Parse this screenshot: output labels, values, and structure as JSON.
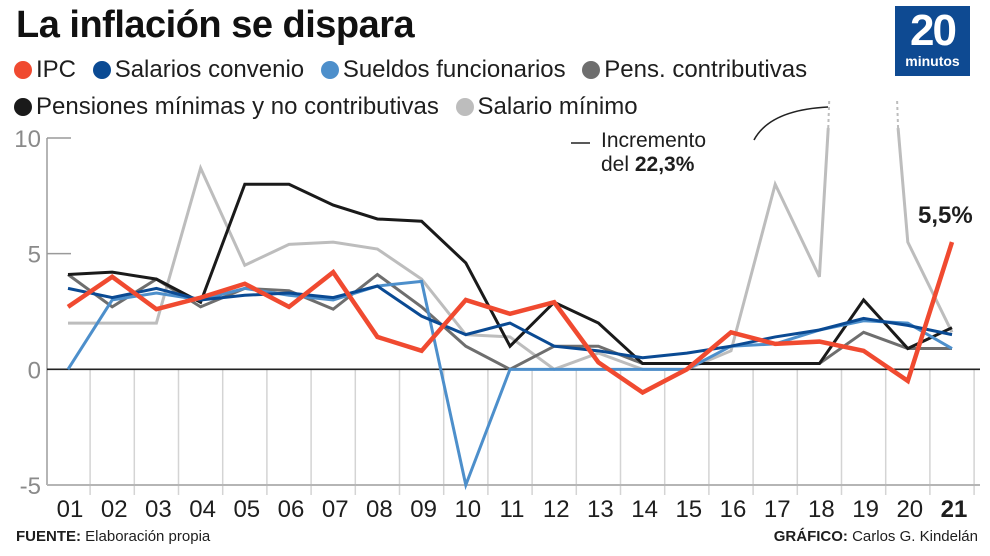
{
  "header": {
    "title": "La inflación se dispara",
    "logo": {
      "number": "20",
      "word": "minutos",
      "color": "#0e4a92"
    }
  },
  "legend": [
    {
      "label": "IPC",
      "color": "#f04a30"
    },
    {
      "label": "Salarios convenio",
      "color": "#0a4a93"
    },
    {
      "label": "Sueldos funcionarios",
      "color": "#4d8fcb"
    },
    {
      "label": "Pens. contributivas",
      "color": "#6e6e6e"
    },
    {
      "label": "Pensiones mínimas y no contributivas",
      "color": "#1a1a1a"
    },
    {
      "label": "Salario mínimo",
      "color": "#bdbdbd"
    }
  ],
  "annotation": {
    "line1": "Incremento",
    "line2_prefix": "del ",
    "line2_value": "22,3%"
  },
  "end_label": "5,5%",
  "footer": {
    "source_label": "FUENTE:",
    "source_text": " Elaboración propia",
    "credit_label": "GRÁFICO:",
    "credit_text": " Carlos G. Kindelán"
  },
  "chart_data": {
    "type": "line",
    "title": "La inflación se dispara",
    "xlabel": "",
    "ylabel": "",
    "x": [
      "01",
      "02",
      "03",
      "04",
      "05",
      "06",
      "07",
      "08",
      "09",
      "10",
      "11",
      "12",
      "13",
      "14",
      "15",
      "16",
      "17",
      "18",
      "19",
      "20",
      "21"
    ],
    "highlight_x": "21",
    "ylim": [
      -5,
      10
    ],
    "yticks": [
      -5,
      0,
      5,
      10
    ],
    "grid": "vertical",
    "legend_position": "top",
    "series": [
      {
        "name": "Salario mínimo",
        "color": "#bdbdbd",
        "values": [
          2.0,
          2.0,
          2.0,
          8.7,
          4.5,
          5.4,
          5.5,
          5.2,
          3.9,
          1.5,
          1.4,
          0.0,
          0.7,
          0.0,
          0.0,
          0.8,
          8.0,
          4.0,
          22.3,
          5.5,
          1.6
        ],
        "break_at": "19"
      },
      {
        "name": "Pens. contributivas",
        "color": "#6e6e6e",
        "values": [
          4.1,
          2.7,
          3.9,
          2.7,
          3.5,
          3.4,
          2.6,
          4.1,
          2.7,
          1.0,
          0.0,
          1.0,
          1.0,
          0.25,
          0.25,
          0.25,
          0.25,
          0.25,
          1.6,
          0.9,
          0.9
        ]
      },
      {
        "name": "Pensiones mínimas y no contributivas",
        "color": "#1a1a1a",
        "values": [
          4.1,
          4.2,
          3.9,
          2.9,
          8.0,
          8.0,
          7.1,
          6.5,
          6.4,
          4.6,
          1.0,
          2.9,
          2.0,
          0.25,
          0.25,
          0.25,
          0.25,
          0.25,
          3.0,
          0.9,
          1.8
        ]
      },
      {
        "name": "Sueldos funcionarios",
        "color": "#4d8fcb",
        "values": [
          0.0,
          3.0,
          3.3,
          3.0,
          3.5,
          3.2,
          3.0,
          3.6,
          3.8,
          -5.0,
          0.0,
          0.0,
          0.0,
          0.0,
          0.0,
          1.0,
          1.1,
          1.7,
          2.1,
          2.0,
          0.9
        ]
      },
      {
        "name": "Salarios convenio",
        "color": "#0a4a93",
        "values": [
          3.5,
          3.1,
          3.5,
          3.0,
          3.2,
          3.3,
          3.1,
          3.6,
          2.3,
          1.5,
          2.0,
          1.0,
          0.8,
          0.5,
          0.7,
          1.0,
          1.4,
          1.7,
          2.2,
          1.9,
          1.5
        ]
      },
      {
        "name": "IPC",
        "color": "#f04a30",
        "values": [
          2.7,
          4.0,
          2.6,
          3.1,
          3.7,
          2.7,
          4.2,
          1.4,
          0.8,
          3.0,
          2.4,
          2.9,
          0.3,
          -1.0,
          0.0,
          1.6,
          1.1,
          1.2,
          0.8,
          -0.5,
          5.5
        ]
      }
    ]
  }
}
